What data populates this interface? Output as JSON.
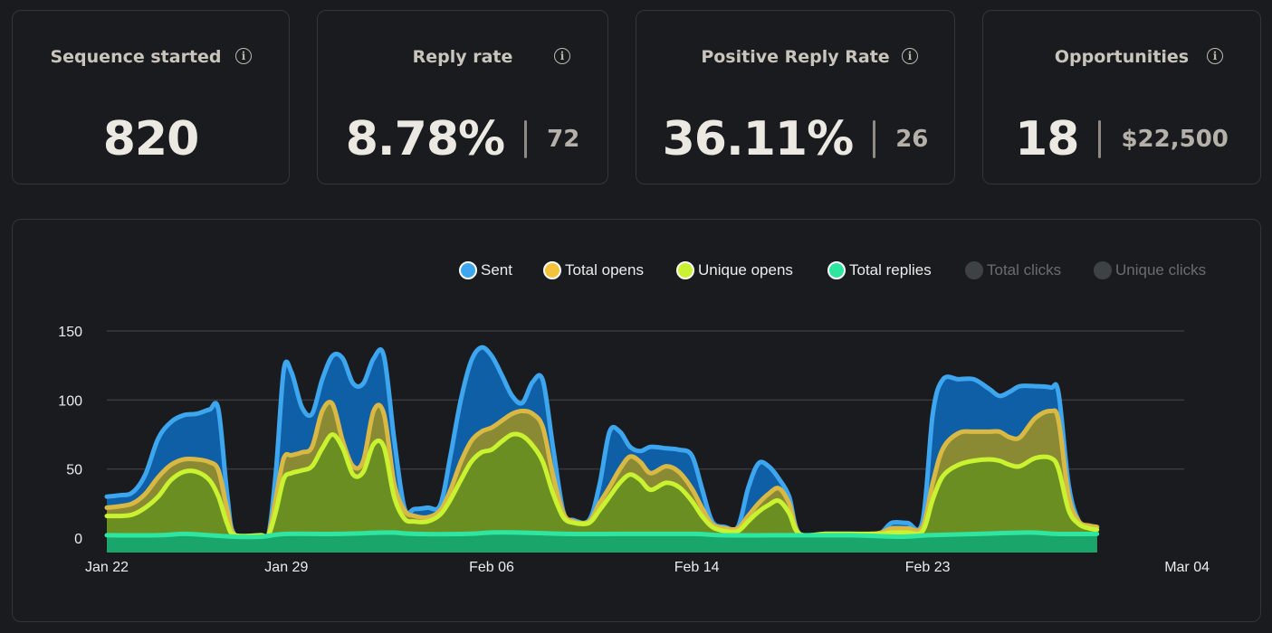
{
  "metrics": [
    {
      "title": "Sequence started",
      "value": "820",
      "secondary": ""
    },
    {
      "title": "Reply rate",
      "value": "8.78%",
      "secondary": "72"
    },
    {
      "title": "Positive Reply Rate",
      "value": "36.11%",
      "secondary": "26"
    },
    {
      "title": "Opportunities",
      "value": "18",
      "secondary": "$22,500"
    }
  ],
  "info_icon_glyph": "i",
  "chart_data": {
    "type": "area",
    "title": "",
    "xlabel": "",
    "ylabel": "",
    "ylim": [
      0,
      150
    ],
    "yticks": [
      0,
      50,
      100,
      150
    ],
    "grid": true,
    "legend_position": "top-right",
    "x_start": "Jan 22",
    "x_end": "Mar 04",
    "xticks": [
      {
        "label": "Jan 22",
        "day": 0
      },
      {
        "label": "Jan 29",
        "day": 7
      },
      {
        "label": "Feb 06",
        "day": 15
      },
      {
        "label": "Feb 14",
        "day": 23
      },
      {
        "label": "Feb 23",
        "day": 32
      },
      {
        "label": "Mar 04",
        "day": 42
      }
    ],
    "series": [
      {
        "name": "Sent",
        "color": "#3ea6ee",
        "fill": "#0e5fa6",
        "visible": true,
        "points": [
          [
            0,
            30
          ],
          [
            0.5,
            31
          ],
          [
            1,
            33
          ],
          [
            1.5,
            46
          ],
          [
            2,
            72
          ],
          [
            2.5,
            84
          ],
          [
            3,
            89
          ],
          [
            3.5,
            90
          ],
          [
            4,
            93
          ],
          [
            4.35,
            93
          ],
          [
            4.7,
            30
          ],
          [
            5,
            2
          ],
          [
            6,
            2
          ],
          [
            6.3,
            2
          ],
          [
            6.6,
            50
          ],
          [
            6.9,
            122
          ],
          [
            7.2,
            120
          ],
          [
            7.6,
            95
          ],
          [
            8,
            90
          ],
          [
            8.4,
            115
          ],
          [
            8.8,
            132
          ],
          [
            9.2,
            130
          ],
          [
            9.6,
            112
          ],
          [
            10,
            112
          ],
          [
            10.4,
            130
          ],
          [
            10.8,
            132
          ],
          [
            11.2,
            72
          ],
          [
            11.6,
            22
          ],
          [
            12,
            21
          ],
          [
            12.5,
            22
          ],
          [
            13,
            24
          ],
          [
            13.4,
            60
          ],
          [
            13.8,
            100
          ],
          [
            14.2,
            128
          ],
          [
            14.6,
            138
          ],
          [
            15,
            132
          ],
          [
            15.4,
            118
          ],
          [
            15.8,
            103
          ],
          [
            16.2,
            98
          ],
          [
            16.6,
            113
          ],
          [
            17,
            114
          ],
          [
            17.4,
            65
          ],
          [
            17.8,
            19
          ],
          [
            18.2,
            13
          ],
          [
            18.8,
            13
          ],
          [
            19.2,
            38
          ],
          [
            19.6,
            77
          ],
          [
            20,
            77
          ],
          [
            20.4,
            66
          ],
          [
            20.8,
            63
          ],
          [
            21.2,
            66
          ],
          [
            21.8,
            65
          ],
          [
            22.3,
            64
          ],
          [
            22.8,
            60
          ],
          [
            23.2,
            36
          ],
          [
            23.6,
            12
          ],
          [
            24.1,
            8
          ],
          [
            24.6,
            8
          ],
          [
            25,
            36
          ],
          [
            25.4,
            54
          ],
          [
            25.8,
            52
          ],
          [
            26.2,
            43
          ],
          [
            26.6,
            30
          ],
          [
            27,
            3
          ],
          [
            28,
            3
          ],
          [
            29,
            3
          ],
          [
            29.8,
            3
          ],
          [
            30.2,
            4
          ],
          [
            30.6,
            11
          ],
          [
            31.2,
            11
          ],
          [
            31.8,
            12
          ],
          [
            32.2,
            90
          ],
          [
            32.6,
            115
          ],
          [
            33.2,
            115
          ],
          [
            33.8,
            115
          ],
          [
            34.4,
            108
          ],
          [
            34.8,
            103
          ],
          [
            35.2,
            106
          ],
          [
            35.6,
            110
          ],
          [
            36.2,
            110
          ],
          [
            36.8,
            109
          ],
          [
            37.1,
            105
          ],
          [
            37.5,
            38
          ],
          [
            37.9,
            12
          ],
          [
            38.3,
            9
          ],
          [
            38.6,
            8
          ]
        ]
      },
      {
        "name": "Total opens",
        "color": "#d9b944",
        "fill": "#8a8a34",
        "visible": true,
        "points": [
          [
            0,
            22
          ],
          [
            0.5,
            23
          ],
          [
            1,
            25
          ],
          [
            1.5,
            32
          ],
          [
            2,
            44
          ],
          [
            2.5,
            53
          ],
          [
            3,
            57
          ],
          [
            3.5,
            57
          ],
          [
            4,
            55
          ],
          [
            4.35,
            49
          ],
          [
            4.7,
            20
          ],
          [
            5,
            2
          ],
          [
            6,
            2
          ],
          [
            6.3,
            2
          ],
          [
            6.6,
            30
          ],
          [
            6.9,
            58
          ],
          [
            7.2,
            60
          ],
          [
            7.6,
            62
          ],
          [
            8,
            66
          ],
          [
            8.4,
            92
          ],
          [
            8.8,
            97
          ],
          [
            9.2,
            70
          ],
          [
            9.6,
            52
          ],
          [
            10,
            56
          ],
          [
            10.4,
            92
          ],
          [
            10.8,
            90
          ],
          [
            11.2,
            40
          ],
          [
            11.6,
            20
          ],
          [
            12,
            16
          ],
          [
            12.5,
            15
          ],
          [
            13,
            20
          ],
          [
            13.4,
            35
          ],
          [
            13.8,
            55
          ],
          [
            14.2,
            70
          ],
          [
            14.6,
            77
          ],
          [
            15,
            80
          ],
          [
            15.4,
            85
          ],
          [
            15.8,
            90
          ],
          [
            16.2,
            92
          ],
          [
            16.6,
            90
          ],
          [
            17,
            80
          ],
          [
            17.4,
            45
          ],
          [
            17.8,
            18
          ],
          [
            18.2,
            12
          ],
          [
            18.8,
            12
          ],
          [
            19.2,
            25
          ],
          [
            19.6,
            37
          ],
          [
            20,
            50
          ],
          [
            20.4,
            59
          ],
          [
            20.8,
            55
          ],
          [
            21.2,
            47
          ],
          [
            21.8,
            52
          ],
          [
            22.3,
            48
          ],
          [
            22.8,
            36
          ],
          [
            23.2,
            22
          ],
          [
            23.6,
            10
          ],
          [
            24.1,
            7
          ],
          [
            24.6,
            7
          ],
          [
            25,
            16
          ],
          [
            25.4,
            25
          ],
          [
            25.8,
            32
          ],
          [
            26.2,
            36
          ],
          [
            26.6,
            25
          ],
          [
            27,
            3
          ],
          [
            28,
            3
          ],
          [
            29,
            3
          ],
          [
            29.8,
            3
          ],
          [
            30.2,
            4
          ],
          [
            30.6,
            7
          ],
          [
            31.2,
            7
          ],
          [
            31.8,
            8
          ],
          [
            32.2,
            40
          ],
          [
            32.6,
            65
          ],
          [
            33.2,
            76
          ],
          [
            33.8,
            77
          ],
          [
            34.4,
            77
          ],
          [
            34.8,
            77
          ],
          [
            35.2,
            73
          ],
          [
            35.6,
            73
          ],
          [
            36.2,
            87
          ],
          [
            36.8,
            92
          ],
          [
            37.1,
            85
          ],
          [
            37.5,
            30
          ],
          [
            37.9,
            12
          ],
          [
            38.3,
            9
          ],
          [
            38.6,
            8
          ]
        ]
      },
      {
        "name": "Unique opens",
        "color": "#c9f230",
        "fill": "#6b8e23",
        "visible": true,
        "points": [
          [
            0,
            16
          ],
          [
            0.5,
            16
          ],
          [
            1,
            17
          ],
          [
            1.5,
            22
          ],
          [
            2,
            30
          ],
          [
            2.5,
            42
          ],
          [
            3,
            48
          ],
          [
            3.5,
            48
          ],
          [
            4,
            42
          ],
          [
            4.35,
            30
          ],
          [
            4.7,
            10
          ],
          [
            5,
            2
          ],
          [
            6,
            2
          ],
          [
            6.3,
            2
          ],
          [
            6.6,
            20
          ],
          [
            6.9,
            43
          ],
          [
            7.2,
            47
          ],
          [
            7.6,
            49
          ],
          [
            8,
            52
          ],
          [
            8.4,
            65
          ],
          [
            8.8,
            75
          ],
          [
            9.2,
            65
          ],
          [
            9.6,
            46
          ],
          [
            10,
            48
          ],
          [
            10.4,
            68
          ],
          [
            10.8,
            66
          ],
          [
            11.2,
            30
          ],
          [
            11.6,
            14
          ],
          [
            12,
            12
          ],
          [
            12.5,
            12
          ],
          [
            13,
            17
          ],
          [
            13.4,
            28
          ],
          [
            13.8,
            42
          ],
          [
            14.2,
            55
          ],
          [
            14.6,
            62
          ],
          [
            15,
            64
          ],
          [
            15.4,
            70
          ],
          [
            15.8,
            75
          ],
          [
            16.2,
            74
          ],
          [
            16.6,
            67
          ],
          [
            17,
            55
          ],
          [
            17.4,
            32
          ],
          [
            17.8,
            15
          ],
          [
            18.2,
            11
          ],
          [
            18.8,
            11
          ],
          [
            19.2,
            20
          ],
          [
            19.6,
            30
          ],
          [
            20,
            40
          ],
          [
            20.4,
            46
          ],
          [
            20.8,
            42
          ],
          [
            21.2,
            35
          ],
          [
            21.8,
            40
          ],
          [
            22.3,
            37
          ],
          [
            22.8,
            27
          ],
          [
            23.2,
            16
          ],
          [
            23.6,
            8
          ],
          [
            24.1,
            5
          ],
          [
            24.6,
            5
          ],
          [
            25,
            12
          ],
          [
            25.4,
            19
          ],
          [
            25.8,
            24
          ],
          [
            26.2,
            27
          ],
          [
            26.6,
            18
          ],
          [
            27,
            3
          ],
          [
            28,
            3
          ],
          [
            29,
            3
          ],
          [
            29.8,
            3
          ],
          [
            30.2,
            3
          ],
          [
            30.6,
            4
          ],
          [
            31.2,
            4
          ],
          [
            31.8,
            5
          ],
          [
            32.2,
            28
          ],
          [
            32.6,
            45
          ],
          [
            33.2,
            53
          ],
          [
            33.8,
            56
          ],
          [
            34.4,
            57
          ],
          [
            34.8,
            56
          ],
          [
            35.2,
            53
          ],
          [
            35.6,
            52
          ],
          [
            36.2,
            58
          ],
          [
            36.8,
            58
          ],
          [
            37.1,
            50
          ],
          [
            37.5,
            20
          ],
          [
            37.9,
            10
          ],
          [
            38.3,
            7
          ],
          [
            38.6,
            6
          ]
        ]
      },
      {
        "name": "Total replies",
        "color": "#2ee6a0",
        "fill": "#1aa56a",
        "visible": true,
        "points": [
          [
            0,
            2
          ],
          [
            2,
            2
          ],
          [
            3,
            3
          ],
          [
            4,
            2
          ],
          [
            5,
            1
          ],
          [
            6,
            1
          ],
          [
            7,
            3
          ],
          [
            9,
            3
          ],
          [
            11,
            4
          ],
          [
            12,
            3
          ],
          [
            14,
            3
          ],
          [
            15,
            4
          ],
          [
            16,
            4
          ],
          [
            18,
            3
          ],
          [
            20,
            3
          ],
          [
            22,
            3
          ],
          [
            23,
            3
          ],
          [
            24,
            2
          ],
          [
            26,
            2
          ],
          [
            27,
            2
          ],
          [
            29,
            2
          ],
          [
            31,
            1
          ],
          [
            32,
            2
          ],
          [
            34,
            3
          ],
          [
            36,
            4
          ],
          [
            37,
            3
          ],
          [
            38.6,
            3
          ]
        ]
      },
      {
        "name": "Total clicks",
        "color": "#3d4342",
        "fill": "#3d4342",
        "visible": false,
        "points": []
      },
      {
        "name": "Unique clicks",
        "color": "#3d4342",
        "fill": "#3d4342",
        "visible": false,
        "points": []
      }
    ]
  }
}
